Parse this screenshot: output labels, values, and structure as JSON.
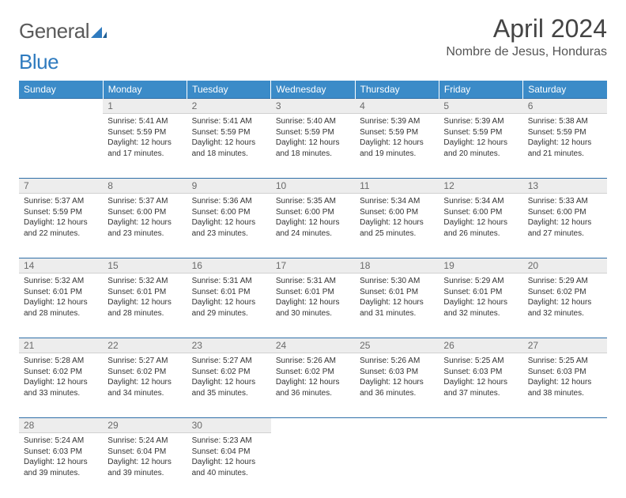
{
  "logo": {
    "word1": "General",
    "word2": "Blue"
  },
  "title": "April 2024",
  "location": "Nombre de Jesus, Honduras",
  "colors": {
    "header_bg": "#3b8bc8",
    "header_text": "#ffffff",
    "daynum_bg": "#ededed",
    "row_border": "#2f6fa8",
    "body_text": "#333333",
    "logo_gray": "#5a5a5a",
    "logo_blue": "#2f7bbf"
  },
  "weekdays": [
    "Sunday",
    "Monday",
    "Tuesday",
    "Wednesday",
    "Thursday",
    "Friday",
    "Saturday"
  ],
  "weeks": [
    [
      null,
      {
        "d": "1",
        "sr": "5:41 AM",
        "ss": "5:59 PM",
        "dl": "12 hours and 17 minutes."
      },
      {
        "d": "2",
        "sr": "5:41 AM",
        "ss": "5:59 PM",
        "dl": "12 hours and 18 minutes."
      },
      {
        "d": "3",
        "sr": "5:40 AM",
        "ss": "5:59 PM",
        "dl": "12 hours and 18 minutes."
      },
      {
        "d": "4",
        "sr": "5:39 AM",
        "ss": "5:59 PM",
        "dl": "12 hours and 19 minutes."
      },
      {
        "d": "5",
        "sr": "5:39 AM",
        "ss": "5:59 PM",
        "dl": "12 hours and 20 minutes."
      },
      {
        "d": "6",
        "sr": "5:38 AM",
        "ss": "5:59 PM",
        "dl": "12 hours and 21 minutes."
      }
    ],
    [
      {
        "d": "7",
        "sr": "5:37 AM",
        "ss": "5:59 PM",
        "dl": "12 hours and 22 minutes."
      },
      {
        "d": "8",
        "sr": "5:37 AM",
        "ss": "6:00 PM",
        "dl": "12 hours and 23 minutes."
      },
      {
        "d": "9",
        "sr": "5:36 AM",
        "ss": "6:00 PM",
        "dl": "12 hours and 23 minutes."
      },
      {
        "d": "10",
        "sr": "5:35 AM",
        "ss": "6:00 PM",
        "dl": "12 hours and 24 minutes."
      },
      {
        "d": "11",
        "sr": "5:34 AM",
        "ss": "6:00 PM",
        "dl": "12 hours and 25 minutes."
      },
      {
        "d": "12",
        "sr": "5:34 AM",
        "ss": "6:00 PM",
        "dl": "12 hours and 26 minutes."
      },
      {
        "d": "13",
        "sr": "5:33 AM",
        "ss": "6:00 PM",
        "dl": "12 hours and 27 minutes."
      }
    ],
    [
      {
        "d": "14",
        "sr": "5:32 AM",
        "ss": "6:01 PM",
        "dl": "12 hours and 28 minutes."
      },
      {
        "d": "15",
        "sr": "5:32 AM",
        "ss": "6:01 PM",
        "dl": "12 hours and 28 minutes."
      },
      {
        "d": "16",
        "sr": "5:31 AM",
        "ss": "6:01 PM",
        "dl": "12 hours and 29 minutes."
      },
      {
        "d": "17",
        "sr": "5:31 AM",
        "ss": "6:01 PM",
        "dl": "12 hours and 30 minutes."
      },
      {
        "d": "18",
        "sr": "5:30 AM",
        "ss": "6:01 PM",
        "dl": "12 hours and 31 minutes."
      },
      {
        "d": "19",
        "sr": "5:29 AM",
        "ss": "6:01 PM",
        "dl": "12 hours and 32 minutes."
      },
      {
        "d": "20",
        "sr": "5:29 AM",
        "ss": "6:02 PM",
        "dl": "12 hours and 32 minutes."
      }
    ],
    [
      {
        "d": "21",
        "sr": "5:28 AM",
        "ss": "6:02 PM",
        "dl": "12 hours and 33 minutes."
      },
      {
        "d": "22",
        "sr": "5:27 AM",
        "ss": "6:02 PM",
        "dl": "12 hours and 34 minutes."
      },
      {
        "d": "23",
        "sr": "5:27 AM",
        "ss": "6:02 PM",
        "dl": "12 hours and 35 minutes."
      },
      {
        "d": "24",
        "sr": "5:26 AM",
        "ss": "6:02 PM",
        "dl": "12 hours and 36 minutes."
      },
      {
        "d": "25",
        "sr": "5:26 AM",
        "ss": "6:03 PM",
        "dl": "12 hours and 36 minutes."
      },
      {
        "d": "26",
        "sr": "5:25 AM",
        "ss": "6:03 PM",
        "dl": "12 hours and 37 minutes."
      },
      {
        "d": "27",
        "sr": "5:25 AM",
        "ss": "6:03 PM",
        "dl": "12 hours and 38 minutes."
      }
    ],
    [
      {
        "d": "28",
        "sr": "5:24 AM",
        "ss": "6:03 PM",
        "dl": "12 hours and 39 minutes."
      },
      {
        "d": "29",
        "sr": "5:24 AM",
        "ss": "6:04 PM",
        "dl": "12 hours and 39 minutes."
      },
      {
        "d": "30",
        "sr": "5:23 AM",
        "ss": "6:04 PM",
        "dl": "12 hours and 40 minutes."
      },
      null,
      null,
      null,
      null
    ]
  ],
  "labels": {
    "sunrise": "Sunrise:",
    "sunset": "Sunset:",
    "daylight": "Daylight:"
  }
}
